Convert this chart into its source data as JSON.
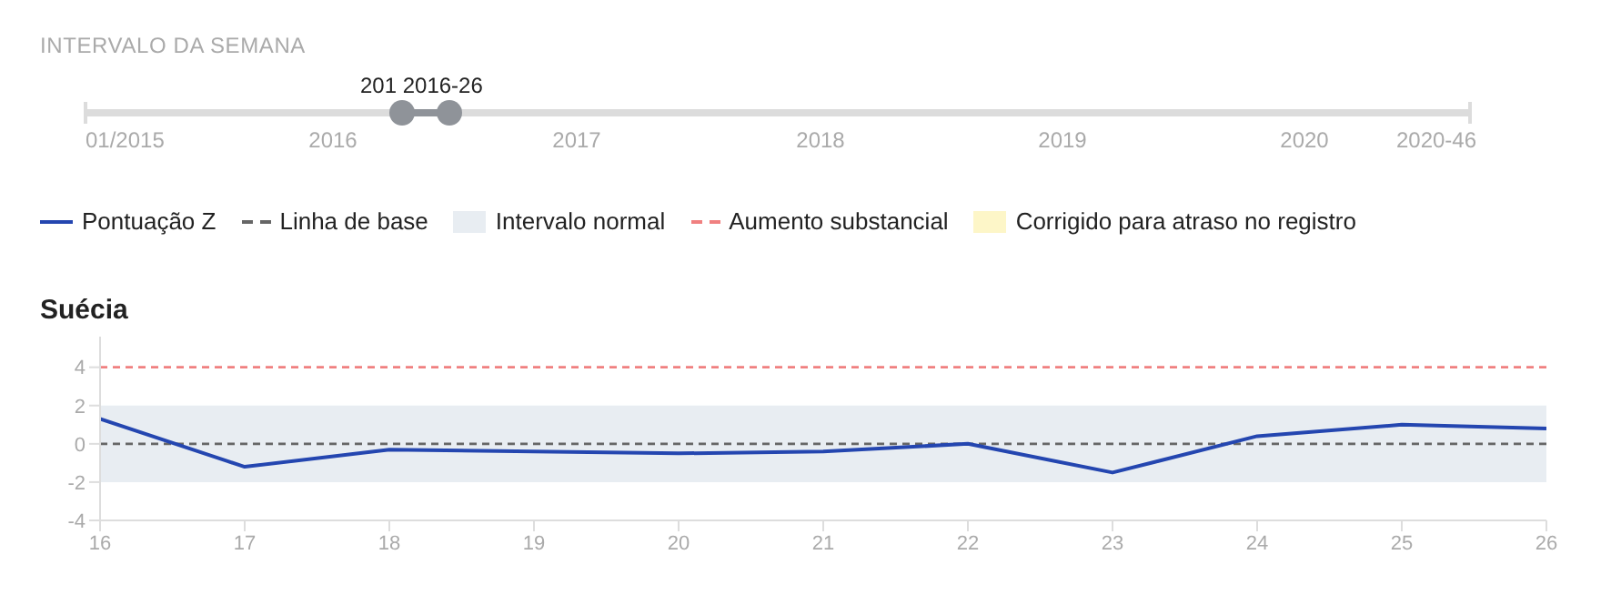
{
  "chart_data": {
    "type": "line",
    "title": "Suécia",
    "x": [
      16,
      17,
      18,
      19,
      20,
      21,
      22,
      23,
      24,
      25,
      26
    ],
    "annotations": [
      "INTERVALO DA SEMANA",
      "201 2016-26",
      "01/2015",
      "2016",
      "2017",
      "2018",
      "2019",
      "2020",
      "2020-46"
    ],
    "series": [
      {
        "name": "Pontuação Z",
        "color": "#2446b0",
        "values": [
          1.3,
          -1.2,
          -0.3,
          -0.4,
          -0.5,
          -0.4,
          0,
          -1.5,
          0.4,
          1.0,
          0.8
        ]
      },
      {
        "name": "Corrigido para atraso no registro",
        "type": "area",
        "color": "#fdf6c8",
        "values": [
          null,
          null,
          null,
          null,
          null,
          null,
          null,
          null,
          null,
          null,
          null
        ]
      }
    ],
    "ref_lines": [
      {
        "axis": "y",
        "value": 0,
        "label": "Linha de base",
        "color": "#666666",
        "line_style": "dashed"
      },
      {
        "axis": "y",
        "value": 4,
        "label": "Aumento substancial",
        "color": "#f08080",
        "line_style": "dashed"
      }
    ],
    "bands": [
      {
        "axis": "y",
        "from": -2,
        "to": 2,
        "label": "Intervalo normal",
        "color": "#e8edf2"
      }
    ],
    "xlim": [
      16,
      26
    ],
    "xticks": [
      16,
      17,
      18,
      19,
      20,
      21,
      22,
      23,
      24,
      25,
      26
    ],
    "ylim": [
      -4,
      5.6
    ],
    "yticks": [
      -4,
      -2,
      0,
      2,
      4
    ],
    "grid": false,
    "legend": "top",
    "marker": "none",
    "line_style": "solid"
  }
}
